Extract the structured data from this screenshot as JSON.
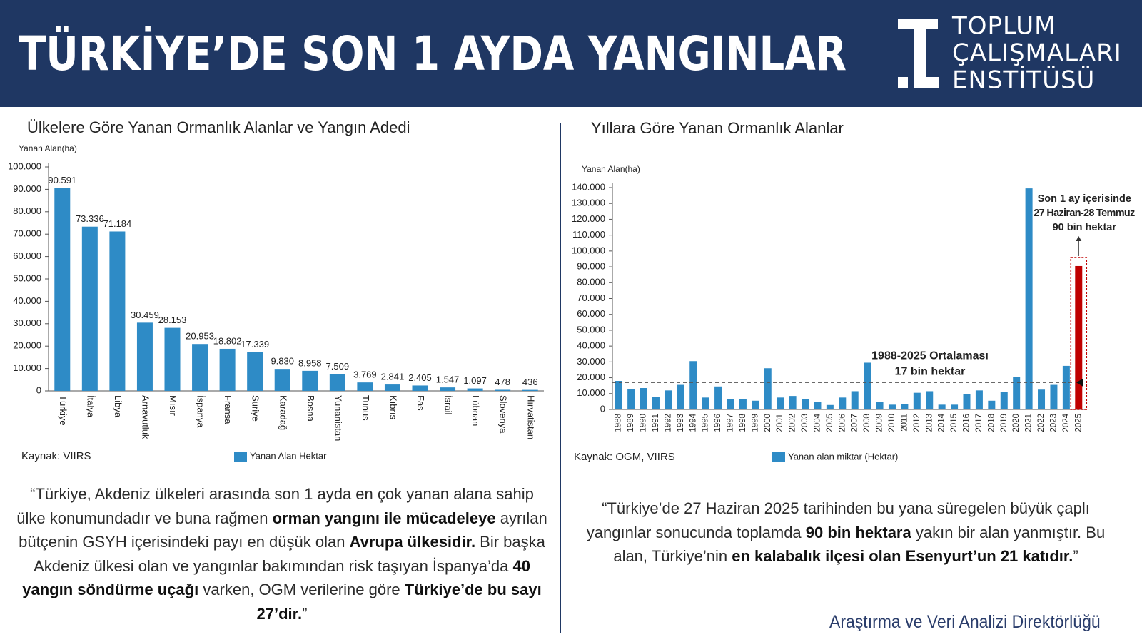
{
  "header": {
    "title": "TÜRKİYE’DE SON 1 AYDA YANGINLAR",
    "logo_lines": [
      "TOPLUM",
      "ÇALIŞMALARI",
      "ENSTİTÜSÜ"
    ]
  },
  "chart_data": [
    {
      "type": "bar",
      "title": "Ülkelere Göre Yanan Ormanlık Alanlar ve Yangın Adedi",
      "y_label": "Yanan Alan(ha)",
      "categories": [
        "Türkiye",
        "İtalya",
        "Libya",
        "Arnavutluk",
        "Mısır",
        "İspanya",
        "Fransa",
        "Suriye",
        "Karadağ",
        "Bosna",
        "Yunanistan",
        "Tunus",
        "Kıbrıs",
        "Fas",
        "İsrail",
        "Lübnan",
        "Slovenya",
        "Hırvatistan"
      ],
      "values": [
        90591,
        73336,
        71184,
        30459,
        28153,
        20953,
        18802,
        17339,
        9830,
        8958,
        7509,
        3769,
        2841,
        2405,
        1547,
        1097,
        478,
        436
      ],
      "value_labels": [
        "90.591",
        "73.336",
        "71.184",
        "30.459",
        "28.153",
        "20.953",
        "18.802",
        "17.339",
        "9.830",
        "8.958",
        "7.509",
        "3.769",
        "2.841",
        "2.405",
        "1.547",
        "1.097",
        "478",
        "436"
      ],
      "color": "#2e8bc6",
      "series_name": "Yanan Alan Hektar",
      "ylim": [
        0,
        100000
      ],
      "yticks": [
        0,
        {
          "value": 10000,
          "label": "10.000"
        },
        {
          "value": 20000,
          "label": "20.000"
        },
        {
          "value": 30000,
          "label": "30.000"
        },
        {
          "value": 40000,
          "label": "40.000"
        },
        {
          "value": 50000,
          "label": "50.000"
        },
        {
          "value": 60000,
          "label": "60.000"
        },
        {
          "value": 70000,
          "label": "70.000"
        },
        {
          "value": 80000,
          "label": "80.000"
        },
        {
          "value": 90000,
          "label": "90.000"
        },
        {
          "value": 100000,
          "label": "100.000"
        }
      ],
      "source": "Kaynak: VIIRS"
    },
    {
      "type": "bar",
      "title": "Yıllara Göre Yanan Ormanlık Alanlar",
      "y_label": "Yanan Alan(ha)",
      "categories": [
        "1988",
        "1989",
        "1990",
        "1991",
        "1992",
        "1993",
        "1994",
        "1995",
        "1996",
        "1997",
        "1998",
        "1999",
        "2000",
        "2001",
        "2002",
        "2003",
        "2004",
        "2005",
        "2006",
        "2007",
        "2008",
        "2009",
        "2010",
        "2011",
        "2012",
        "2013",
        "2014",
        "2015",
        "2016",
        "2017",
        "2018",
        "2019",
        "2020",
        "2021",
        "2022",
        "2023",
        "2024",
        "2025"
      ],
      "values": [
        18000,
        13000,
        13500,
        8000,
        12000,
        15500,
        30500,
        7500,
        14500,
        6500,
        6500,
        5500,
        26000,
        7500,
        8500,
        6500,
        4500,
        2800,
        7500,
        11500,
        29500,
        4500,
        3000,
        3500,
        10500,
        11500,
        3000,
        3000,
        9500,
        12000,
        5500,
        11000,
        20500,
        139500,
        12500,
        15500,
        27500,
        90500
      ],
      "color": "#2e8bc6",
      "colors": [
        "#2e8bc6",
        "#2e8bc6",
        "#2e8bc6",
        "#2e8bc6",
        "#2e8bc6",
        "#2e8bc6",
        "#2e8bc6",
        "#2e8bc6",
        "#2e8bc6",
        "#2e8bc6",
        "#2e8bc6",
        "#2e8bc6",
        "#2e8bc6",
        "#2e8bc6",
        "#2e8bc6",
        "#2e8bc6",
        "#2e8bc6",
        "#2e8bc6",
        "#2e8bc6",
        "#2e8bc6",
        "#2e8bc6",
        "#2e8bc6",
        "#2e8bc6",
        "#2e8bc6",
        "#2e8bc6",
        "#2e8bc6",
        "#2e8bc6",
        "#2e8bc6",
        "#2e8bc6",
        "#2e8bc6",
        "#2e8bc6",
        "#2e8bc6",
        "#2e8bc6",
        "#2e8bc6",
        "#2e8bc6",
        "#2e8bc6",
        "#2e8bc6",
        "#c00000"
      ],
      "series_name": "Yanan alan miktar (Hektar)",
      "ylim": [
        0,
        140000
      ],
      "yticks": [
        0,
        {
          "value": 10000,
          "label": "10.000"
        },
        {
          "value": 20000,
          "label": "20.000"
        },
        {
          "value": 30000,
          "label": "30.000"
        },
        {
          "value": 40000,
          "label": "40.000"
        },
        {
          "value": 50000,
          "label": "50.000"
        },
        {
          "value": 60000,
          "label": "60.000"
        },
        {
          "value": 70000,
          "label": "70.000"
        },
        {
          "value": 80000,
          "label": "80.000"
        },
        {
          "value": 90000,
          "label": "90.000"
        },
        {
          "value": 100000,
          "label": "100.000"
        },
        {
          "value": 110000,
          "label": "110.000"
        },
        {
          "value": 120000,
          "label": "120.000"
        },
        {
          "value": 130000,
          "label": "130.000"
        },
        {
          "value": 140000,
          "label": "140.000"
        }
      ],
      "reference_line": {
        "value": 17000,
        "label_lines": [
          "1988-2025 Ortalaması",
          "17 bin hektar"
        ]
      },
      "annotation_lines": [
        "Son 1 ay içerisinde",
        "27 Haziran-28 Temmuz",
        "90 bin hektar"
      ],
      "source": "Kaynak: OGM, VIIRS"
    }
  ],
  "quotes": [
    {
      "segments": [
        {
          "text": "“Türkiye, Akdeniz ülkeleri arasında son 1 ayda en çok yanan alana sahip ülke konumundadır ve buna rağmen ",
          "bold": false
        },
        {
          "text": "orman yangını ile mücadeleye",
          "bold": true
        },
        {
          "text": " ayrılan bütçenin GSYH içerisindeki payı en düşük olan ",
          "bold": false
        },
        {
          "text": "Avrupa ülkesidir.",
          "bold": true
        },
        {
          "text": " Bir başka Akdeniz ülkesi olan ve yangınlar bakımından risk taşıyan İspanya’da ",
          "bold": false
        },
        {
          "text": "40 yangın söndürme uçağı",
          "bold": true
        },
        {
          "text": " varken, OGM verilerine göre ",
          "bold": false
        },
        {
          "text": "Türkiye’de bu sayı 27’dir.",
          "bold": true
        },
        {
          "text": "”",
          "bold": false
        }
      ]
    },
    {
      "segments": [
        {
          "text": "“Türkiye’de 27 Haziran 2025 tarihinden bu yana süregelen büyük çaplı yangınlar sonucunda toplamda ",
          "bold": false
        },
        {
          "text": "90 bin hektara",
          "bold": true
        },
        {
          "text": " yakın bir alan yanmıştır. Bu alan, Türkiye’nin ",
          "bold": false
        },
        {
          "text": "en kalabalık ilçesi olan Esenyurt’un 21 katıdır.",
          "bold": true
        },
        {
          "text": "”",
          "bold": false
        }
      ]
    }
  ],
  "footer": "Araştırma ve Veri Analizi Direktörlüğü"
}
